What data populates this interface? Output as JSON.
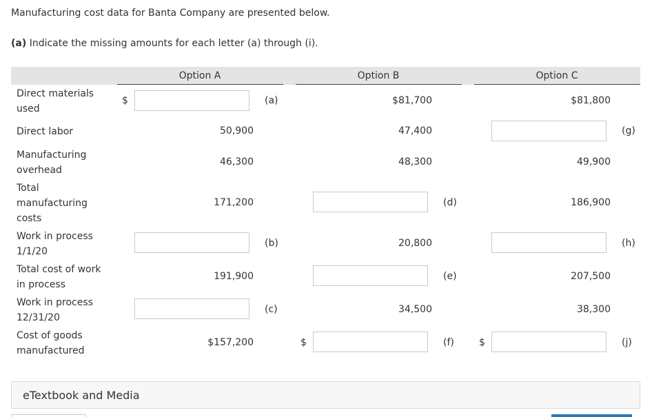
{
  "intro": "Manufacturing cost data for Banta Company are presented below.",
  "question": {
    "prefix": "(a)",
    "text": " Indicate the missing amounts for each letter (a) through (i)."
  },
  "options": [
    "Option A",
    "Option B",
    "Option C"
  ],
  "rows": [
    {
      "label": "Direct materials used"
    },
    {
      "label": "Direct labor"
    },
    {
      "label": "Manufacturing overhead"
    },
    {
      "label": "Total manufacturing costs"
    },
    {
      "label": "Work in process 1/1/20"
    },
    {
      "label": "Total cost of work in process"
    },
    {
      "label": "Work in process 12/31/20"
    },
    {
      "label": "Cost of goods manufactured"
    }
  ],
  "values": {
    "a_labor": "50,900",
    "a_overhead": "46,300",
    "a_total": "171,200",
    "a_total_wip": "191,900",
    "a_cogm": "$157,200",
    "b_materials": "$81,700",
    "b_labor": "47,400",
    "b_overhead": "48,300",
    "b_wip_begin": "20,800",
    "b_wip_end": "34,500",
    "c_materials": "$81,800",
    "c_overhead": "49,900",
    "c_total": "186,900",
    "c_total_wip": "207,500",
    "c_wip_end": "38,300"
  },
  "letters": {
    "a": "(a)",
    "b": "(b)",
    "c": "(c)",
    "d": "(d)",
    "e": "(e)",
    "f": "(f)",
    "g": "(g)",
    "h": "(h)",
    "j": "(j)"
  },
  "currency": "$",
  "etextbook": "eTextbook and Media"
}
